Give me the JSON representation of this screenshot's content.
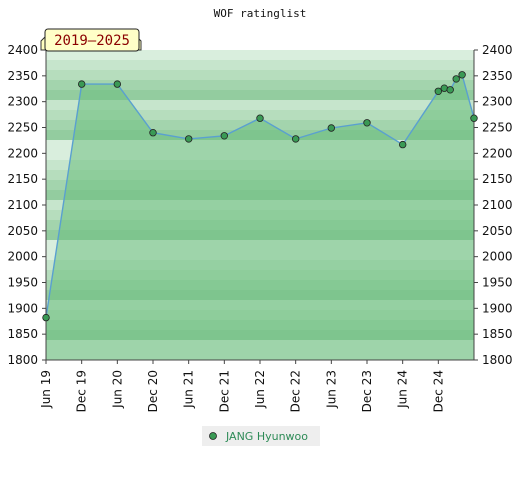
{
  "chart_data": {
    "type": "area",
    "title": "WOF ratinglist",
    "period_badge": "2019–2025",
    "ylim": [
      1800,
      2400
    ],
    "y_ticks": [
      1800,
      1850,
      1900,
      1950,
      2000,
      2050,
      2100,
      2150,
      2200,
      2250,
      2300,
      2350,
      2400
    ],
    "x_ticks": [
      "Jun 19",
      "Dec 19",
      "Jun 20",
      "Dec 20",
      "Jun 21",
      "Dec 21",
      "Jun 22",
      "Dec 22",
      "Jun 23",
      "Dec 23",
      "Jun 24",
      "Dec 24"
    ],
    "x_tick_dates": [
      "2019-06",
      "2019-12",
      "2020-06",
      "2020-12",
      "2021-06",
      "2021-12",
      "2022-06",
      "2022-12",
      "2023-06",
      "2023-12",
      "2024-06",
      "2024-12"
    ],
    "x_range": [
      "2019-06",
      "2025-06"
    ],
    "grid": true,
    "legend_position": "bottom",
    "series": [
      {
        "name": "JANG Hyunwoo",
        "color": "#5aa0d0",
        "fill": "#6dbf80",
        "marker_color": "#3a9a55",
        "points": [
          {
            "x": "2019-06",
            "y": 1882
          },
          {
            "x": "2019-12",
            "y": 2334
          },
          {
            "x": "2020-06",
            "y": 2334
          },
          {
            "x": "2020-12",
            "y": 2240
          },
          {
            "x": "2021-06",
            "y": 2228
          },
          {
            "x": "2021-12",
            "y": 2234
          },
          {
            "x": "2022-06",
            "y": 2268
          },
          {
            "x": "2022-12",
            "y": 2228
          },
          {
            "x": "2023-06",
            "y": 2249
          },
          {
            "x": "2023-12",
            "y": 2259
          },
          {
            "x": "2024-06",
            "y": 2217
          },
          {
            "x": "2024-12",
            "y": 2320
          },
          {
            "x": "2025-01",
            "y": 2326
          },
          {
            "x": "2025-02",
            "y": 2323
          },
          {
            "x": "2025-03",
            "y": 2344
          },
          {
            "x": "2025-04",
            "y": 2352
          },
          {
            "x": "2025-06",
            "y": 2268
          }
        ]
      }
    ]
  }
}
